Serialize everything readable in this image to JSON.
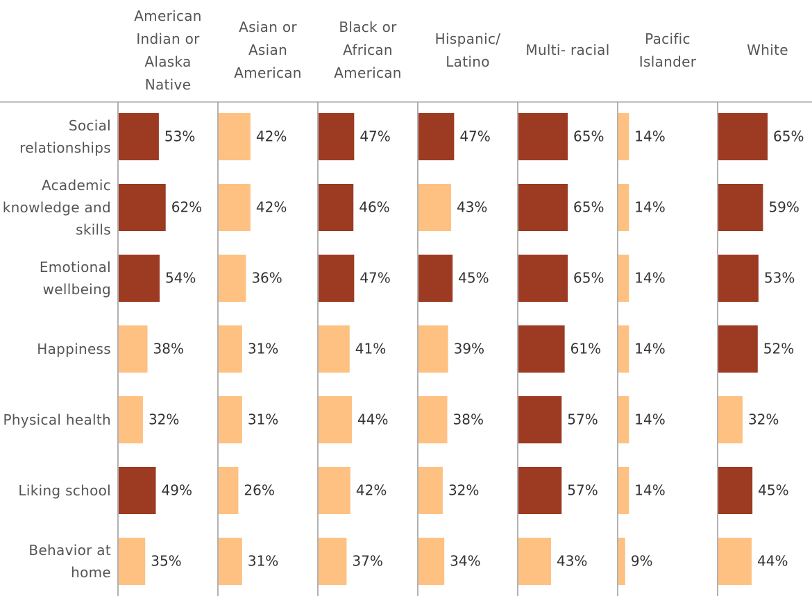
{
  "chart_data": {
    "type": "bar",
    "categories": [
      "Social relationships",
      "Academic knowledge and skills",
      "Emotional wellbeing",
      "Happiness",
      "Physical health",
      "Liking school",
      "Behavior at home"
    ],
    "xlim": [
      0,
      130
    ],
    "series": [
      {
        "name": "American Indian or Alaska Native",
        "values": [
          53,
          62,
          54,
          38,
          32,
          49,
          35
        ],
        "value_labels": [
          "53%",
          "62%",
          "54%",
          "38%",
          "32%",
          "49%",
          "35%"
        ],
        "colors": [
          "#9c3a22",
          "#9c3a22",
          "#9c3a22",
          "#fec182",
          "#fec182",
          "#9c3a22",
          "#fec182"
        ]
      },
      {
        "name": "Asian or Asian American",
        "values": [
          42,
          42,
          36,
          31,
          31,
          26,
          31
        ],
        "value_labels": [
          "42%",
          "42%",
          "36%",
          "31%",
          "31%",
          "26%",
          "31%"
        ],
        "colors": [
          "#fec182",
          "#fec182",
          "#fec182",
          "#fec182",
          "#fec182",
          "#fec182",
          "#fec182"
        ]
      },
      {
        "name": "Black or African American",
        "values": [
          47,
          46,
          47,
          41,
          44,
          42,
          37
        ],
        "value_labels": [
          "47%",
          "46%",
          "47%",
          "41%",
          "44%",
          "42%",
          "37%"
        ],
        "colors": [
          "#9c3a22",
          "#9c3a22",
          "#9c3a22",
          "#fec182",
          "#fec182",
          "#fec182",
          "#fec182"
        ]
      },
      {
        "name": "Hispanic/ Latino",
        "values": [
          47,
          43,
          45,
          39,
          38,
          32,
          34
        ],
        "value_labels": [
          "47%",
          "43%",
          "45%",
          "39%",
          "38%",
          "32%",
          "34%"
        ],
        "colors": [
          "#9c3a22",
          "#fec182",
          "#9c3a22",
          "#fec182",
          "#fec182",
          "#fec182",
          "#fec182"
        ]
      },
      {
        "name": "Multi- racial",
        "values": [
          65,
          65,
          65,
          61,
          57,
          57,
          43
        ],
        "value_labels": [
          "65%",
          "65%",
          "65%",
          "61%",
          "57%",
          "57%",
          "43%"
        ],
        "colors": [
          "#9c3a22",
          "#9c3a22",
          "#9c3a22",
          "#9c3a22",
          "#9c3a22",
          "#9c3a22",
          "#fec182"
        ]
      },
      {
        "name": "Pacific Islander",
        "values": [
          14,
          14,
          14,
          14,
          14,
          14,
          9
        ],
        "value_labels": [
          "14%",
          "14%",
          "14%",
          "14%",
          "14%",
          "14%",
          "9%"
        ],
        "colors": [
          "#fec182",
          "#fec182",
          "#fec182",
          "#fec182",
          "#fec182",
          "#fec182",
          "#fec182"
        ]
      },
      {
        "name": "White",
        "values": [
          65,
          59,
          53,
          52,
          32,
          45,
          44
        ],
        "value_labels": [
          "65%",
          "59%",
          "53%",
          "52%",
          "32%",
          "45%",
          "44%"
        ],
        "colors": [
          "#9c3a22",
          "#9c3a22",
          "#9c3a22",
          "#9c3a22",
          "#fec182",
          "#9c3a22",
          "#fec182"
        ]
      }
    ]
  }
}
